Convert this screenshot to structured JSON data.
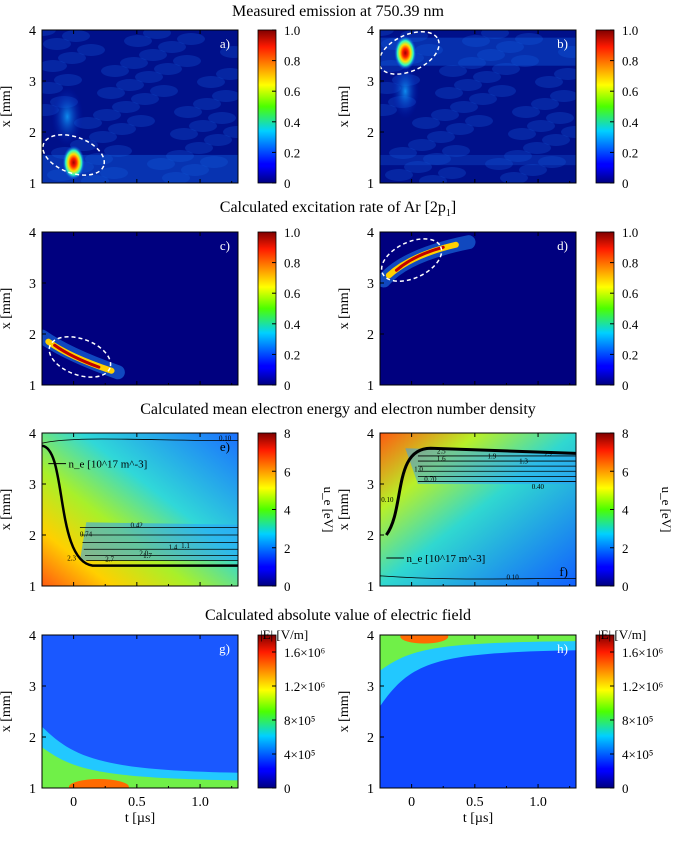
{
  "figure": {
    "row_titles": [
      "Measured emission at 750.39 nm",
      "Calculated excitation rate of Ar [2p",
      "Calculated mean electron energy and electron number density",
      "Calculated absolute value of electric field"
    ],
    "row2_title_subscript": "1",
    "row2_title_suffix": "]",
    "y_label": "x [mm]",
    "x_label": "t [µs]",
    "x_ticks": [
      "0",
      "0.5",
      "1.0"
    ],
    "y_ticks": [
      "1",
      "2",
      "3",
      "4"
    ]
  },
  "chart_data": [
    {
      "id": "a",
      "type": "heatmap",
      "label": "a)",
      "row": 0,
      "col": 0,
      "title": "Measured emission at 750.39 nm",
      "xlabel": "",
      "ylabel": "x [mm]",
      "xlim": [
        -0.25,
        1.3
      ],
      "ylim": [
        1,
        4
      ],
      "colorbar": {
        "ticks": [
          "0",
          "0.2",
          "0.4",
          "0.6",
          "0.8",
          "1.0"
        ],
        "range": [
          0,
          1
        ],
        "label": ""
      },
      "hotspot": {
        "t": 0.0,
        "x": 1.4
      },
      "highlight_ellipse": {
        "t": 0.0,
        "x": 1.55
      }
    },
    {
      "id": "b",
      "type": "heatmap",
      "label": "b)",
      "row": 0,
      "col": 1,
      "title": "Measured emission at 750.39 nm",
      "xlabel": "",
      "ylabel": "x [mm]",
      "xlim": [
        -0.25,
        1.3
      ],
      "ylim": [
        1,
        4
      ],
      "colorbar": {
        "ticks": [
          "0",
          "0.2",
          "0.4",
          "0.6",
          "0.8",
          "1.0"
        ],
        "range": [
          0,
          1
        ],
        "label": ""
      },
      "hotspot": {
        "t": -0.05,
        "x": 3.55
      },
      "highlight_ellipse": {
        "t": -0.02,
        "x": 3.55
      }
    },
    {
      "id": "c",
      "type": "heatmap",
      "label": "c)",
      "row": 1,
      "col": 0,
      "title": "Calculated excitation rate of Ar [2p1]",
      "xlabel": "",
      "ylabel": "x [mm]",
      "xlim": [
        -0.25,
        1.3
      ],
      "ylim": [
        1,
        4
      ],
      "colorbar": {
        "ticks": [
          "0",
          "0.2",
          "0.4",
          "0.6",
          "0.8",
          "1.0"
        ],
        "range": [
          0,
          1
        ],
        "label": ""
      },
      "hotspot": {
        "t": 0.0,
        "x": 1.5
      },
      "highlight_ellipse": {
        "t": 0.05,
        "x": 1.55
      }
    },
    {
      "id": "d",
      "type": "heatmap",
      "label": "d)",
      "row": 1,
      "col": 1,
      "title": "Calculated excitation rate of Ar [2p1]",
      "xlabel": "",
      "ylabel": "x [mm]",
      "xlim": [
        -0.25,
        1.3
      ],
      "ylim": [
        1,
        4
      ],
      "colorbar": {
        "ticks": [
          "0",
          "0.2",
          "0.4",
          "0.6",
          "0.8",
          "1.0"
        ],
        "range": [
          0,
          1
        ],
        "label": ""
      },
      "hotspot": {
        "t": 0.0,
        "x": 3.5
      },
      "highlight_ellipse": {
        "t": 0.0,
        "x": 3.45
      }
    },
    {
      "id": "e",
      "type": "heatmap",
      "label": "e)",
      "row": 2,
      "col": 0,
      "title": "Calculated mean electron energy and electron number density",
      "xlabel": "",
      "ylabel": "x [mm]",
      "xlim": [
        -0.25,
        1.3
      ],
      "ylim": [
        1,
        4
      ],
      "colorbar": {
        "ticks": [
          "0",
          "2",
          "4",
          "6",
          "8"
        ],
        "range": [
          0,
          8
        ],
        "label": "u_e [eV]"
      },
      "density_legend": "n_e [10^17 m^-3]",
      "contour_labels": [
        "0.10",
        "0.42",
        "0.74",
        "1.1",
        "1.4",
        "1.7",
        "2.0",
        "2.3",
        "2.7"
      ]
    },
    {
      "id": "f",
      "type": "heatmap",
      "label": "f)",
      "row": 2,
      "col": 1,
      "title": "Calculated mean electron energy and electron number density",
      "xlabel": "",
      "ylabel": "x [mm]",
      "xlim": [
        -0.25,
        1.3
      ],
      "ylim": [
        1,
        4
      ],
      "colorbar": {
        "ticks": [
          "0",
          "2",
          "4",
          "6",
          "8"
        ],
        "range": [
          0,
          8
        ],
        "label": "u_e [eV]"
      },
      "density_legend": "n_e [10^17 m^-3]",
      "contour_labels": [
        "0.10",
        "0.10",
        "0.40",
        "0.70",
        "1.0",
        "1.3",
        "1.6",
        "1.9",
        "2.2",
        "2.5"
      ]
    },
    {
      "id": "g",
      "type": "heatmap",
      "label": "g)",
      "row": 3,
      "col": 0,
      "title": "Calculated absolute value of electric field",
      "xlabel": "t [µs]",
      "ylabel": "x [mm]",
      "xlim": [
        -0.25,
        1.3
      ],
      "ylim": [
        1,
        4
      ],
      "colorbar": {
        "ticks": [
          "0",
          "4×10⁵",
          "8×10⁵",
          "1.2×10⁶",
          "1.6×10⁶"
        ],
        "range": [
          0,
          1800000.0
        ],
        "label": "|E| [V/m]"
      }
    },
    {
      "id": "h",
      "type": "heatmap",
      "label": "h)",
      "row": 3,
      "col": 1,
      "title": "Calculated absolute value of electric field",
      "xlabel": "t [µs]",
      "ylabel": "x [mm]",
      "xlim": [
        -0.25,
        1.3
      ],
      "ylim": [
        1,
        4
      ],
      "colorbar": {
        "ticks": [
          "0",
          "4×10⁵",
          "8×10⁵",
          "1.2×10⁶",
          "1.6×10⁶"
        ],
        "range": [
          0,
          1800000.0
        ],
        "label": "|E| [V/m]"
      }
    }
  ],
  "colors": {
    "background": "#ffffff",
    "axis": "#000000",
    "ellipse": "#ffffff",
    "contour": "#000000"
  }
}
